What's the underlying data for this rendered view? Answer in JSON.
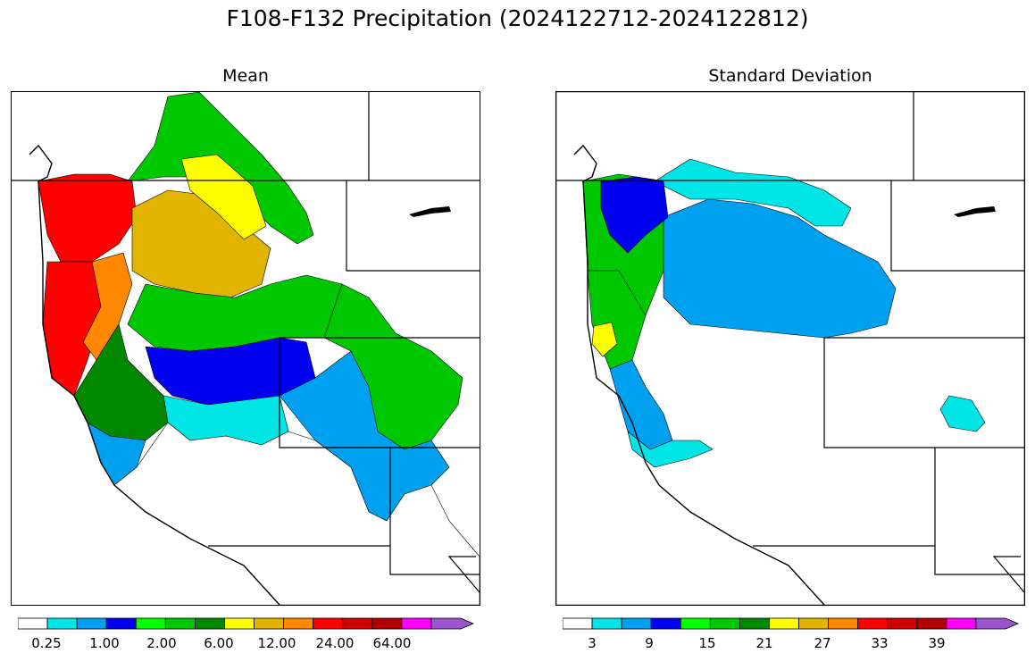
{
  "title": "F108-F132 Precipitation (2024122712-2024122812)",
  "panels": [
    {
      "title": "Mean",
      "colorbar": {
        "colors": [
          "#ffffff",
          "#00e5e5",
          "#00a0f0",
          "#0000f0",
          "#00ff00",
          "#00c800",
          "#008800",
          "#ffff00",
          "#e0b400",
          "#ff8800",
          "#ff0000",
          "#d00000",
          "#b00000",
          "#ff00ff",
          "#9955cc"
        ],
        "tick_labels": [
          "0.25",
          "1.00",
          "2.00",
          "6.00",
          "12.00",
          "24.00",
          "64.00"
        ],
        "extend": "max"
      },
      "regions": [
        {
          "name": "washington-coast",
          "color": "#ff0000"
        },
        {
          "name": "oregon-coast",
          "color": "#ff0000"
        },
        {
          "name": "oregon-cascades",
          "color": "#ff8800"
        },
        {
          "name": "columbia-basin",
          "color": "#e0b400"
        },
        {
          "name": "northern-idaho",
          "color": "#ffff00"
        },
        {
          "name": "british-columbia",
          "color": "#00c800"
        },
        {
          "name": "idaho-central",
          "color": "#00c800"
        },
        {
          "name": "snake-river-plain",
          "color": "#0000f0"
        },
        {
          "name": "wyoming-montana",
          "color": "#00c800"
        },
        {
          "name": "utah-colorado",
          "color": "#00a0f0"
        },
        {
          "name": "nevada-north",
          "color": "#00e5e5"
        },
        {
          "name": "northern-california",
          "color": "#008800"
        },
        {
          "name": "california-coast",
          "color": "#00a0f0"
        },
        {
          "name": "southwest-desert",
          "color": "#ffffff"
        }
      ]
    },
    {
      "title": "Standard Deviation",
      "colorbar": {
        "colors": [
          "#ffffff",
          "#00e5e5",
          "#00a0f0",
          "#0000f0",
          "#00ff00",
          "#00c800",
          "#008800",
          "#ffff00",
          "#e0b400",
          "#ff8800",
          "#ff0000",
          "#d00000",
          "#b00000",
          "#ff00ff",
          "#9955cc"
        ],
        "tick_labels": [
          "3",
          "9",
          "15",
          "21",
          "27",
          "33",
          "39"
        ],
        "extend": "max"
      },
      "regions": [
        {
          "name": "washington-coast",
          "color": "#00c800"
        },
        {
          "name": "olympic-peninsula",
          "color": "#0000f0"
        },
        {
          "name": "oregon-coast",
          "color": "#00c800"
        },
        {
          "name": "oregon-yellow-spot",
          "color": "#ffff00"
        },
        {
          "name": "oregon-cascades",
          "color": "#00a0f0"
        },
        {
          "name": "columbia-basin",
          "color": "#00e5e5"
        },
        {
          "name": "idaho-montana",
          "color": "#00a0f0"
        },
        {
          "name": "northern-california",
          "color": "#00e5e5"
        },
        {
          "name": "colorado-patches",
          "color": "#00e5e5"
        },
        {
          "name": "southwest-desert",
          "color": "#ffffff"
        }
      ]
    }
  ]
}
